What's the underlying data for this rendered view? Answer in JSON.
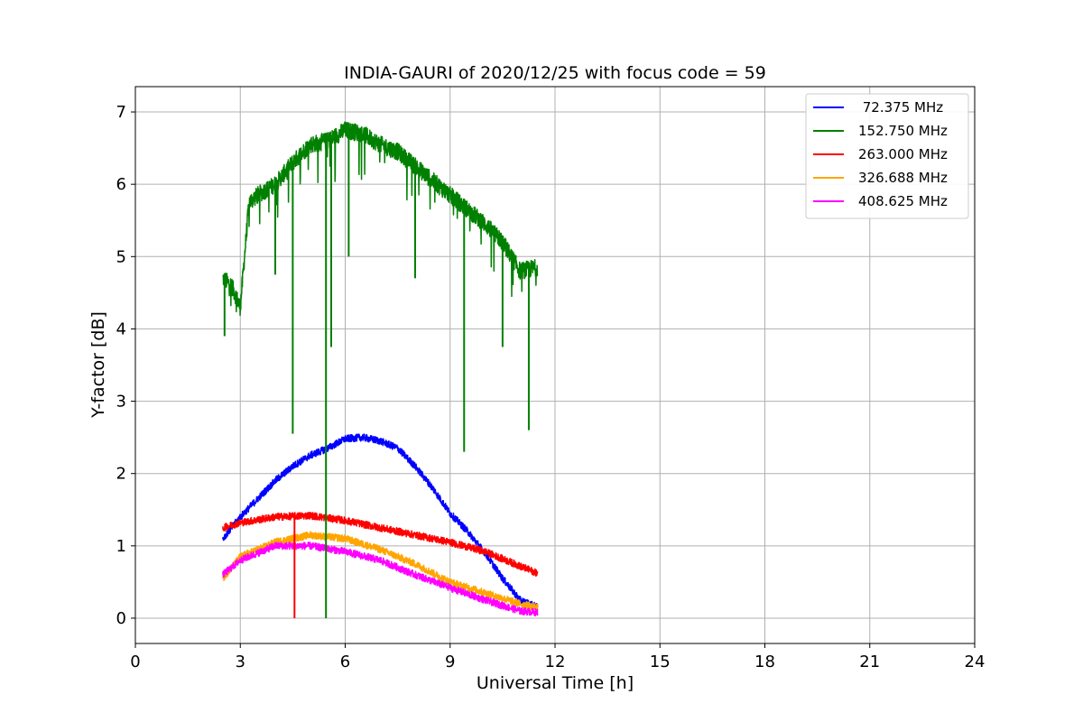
{
  "chart_data": {
    "type": "line",
    "title": "INDIA-GAURI of 2020/12/25 with focus code = 59",
    "xlabel": "Universal Time [h]",
    "ylabel": "Y-factor [dB]",
    "xlim": [
      0,
      24
    ],
    "ylim": [
      -0.35,
      7.35
    ],
    "xticks": [
      0,
      3,
      6,
      9,
      12,
      15,
      18,
      21,
      24
    ],
    "yticks": [
      0,
      1,
      2,
      3,
      4,
      5,
      6,
      7
    ],
    "grid": true,
    "legend_position": "top-right",
    "series": [
      {
        "name": " 72.375 MHz",
        "color": "#0000ff",
        "noise": 0.05,
        "x": [
          2.5,
          3.0,
          3.5,
          4.0,
          4.5,
          5.0,
          5.5,
          6.0,
          6.5,
          7.0,
          7.5,
          8.0,
          8.5,
          9.0,
          9.5,
          10.0,
          10.5,
          11.0,
          11.5
        ],
        "y": [
          1.1,
          1.4,
          1.65,
          1.9,
          2.1,
          2.25,
          2.35,
          2.48,
          2.5,
          2.45,
          2.35,
          2.1,
          1.8,
          1.45,
          1.2,
          0.9,
          0.55,
          0.25,
          0.15
        ]
      },
      {
        "name": "152.750 MHz",
        "color": "#008000",
        "noise": 0.12,
        "x": [
          2.5,
          2.75,
          3.0,
          3.25,
          3.5,
          4.0,
          4.5,
          5.0,
          5.5,
          6.0,
          6.5,
          7.0,
          7.5,
          8.0,
          8.5,
          9.0,
          9.5,
          10.0,
          10.5,
          11.0,
          11.5
        ],
        "y": [
          4.7,
          4.6,
          4.3,
          5.75,
          5.85,
          6.0,
          6.3,
          6.55,
          6.6,
          6.75,
          6.7,
          6.55,
          6.45,
          6.25,
          6.05,
          5.85,
          5.65,
          5.45,
          5.2,
          4.8,
          4.85
        ]
      },
      {
        "name": "263.000 MHz",
        "color": "#ff0000",
        "noise": 0.05,
        "x": [
          2.5,
          3.0,
          4.0,
          5.0,
          6.0,
          7.0,
          8.0,
          9.0,
          10.0,
          11.0,
          11.5
        ],
        "y": [
          1.25,
          1.32,
          1.4,
          1.42,
          1.35,
          1.25,
          1.15,
          1.05,
          0.92,
          0.72,
          0.62
        ]
      },
      {
        "name": "326.688 MHz",
        "color": "#ffa500",
        "noise": 0.05,
        "x": [
          2.5,
          3.0,
          3.5,
          4.0,
          5.0,
          6.0,
          7.0,
          8.0,
          9.0,
          10.0,
          11.0,
          11.5
        ],
        "y": [
          0.55,
          0.85,
          0.95,
          1.05,
          1.15,
          1.1,
          0.95,
          0.75,
          0.5,
          0.35,
          0.2,
          0.15
        ]
      },
      {
        "name": "408.625 MHz",
        "color": "#ff00ff",
        "noise": 0.05,
        "x": [
          2.5,
          3.0,
          3.5,
          4.0,
          5.0,
          6.0,
          7.0,
          8.0,
          9.0,
          10.0,
          11.0,
          11.5
        ],
        "y": [
          0.6,
          0.8,
          0.9,
          1.0,
          1.0,
          0.92,
          0.8,
          0.6,
          0.42,
          0.25,
          0.1,
          0.08
        ]
      }
    ],
    "spikes": [
      {
        "series": 1,
        "x": 4.5,
        "y": 2.55
      },
      {
        "series": 1,
        "x": 5.45,
        "y": 0.0
      },
      {
        "series": 1,
        "x": 5.6,
        "y": 3.75
      },
      {
        "series": 1,
        "x": 9.4,
        "y": 2.3
      },
      {
        "series": 1,
        "x": 11.25,
        "y": 2.6
      },
      {
        "series": 1,
        "x": 4.0,
        "y": 4.75
      },
      {
        "series": 1,
        "x": 8.0,
        "y": 4.7
      },
      {
        "series": 1,
        "x": 10.5,
        "y": 3.75
      },
      {
        "series": 1,
        "x": 2.55,
        "y": 3.9
      },
      {
        "series": 1,
        "x": 6.1,
        "y": 5.0
      },
      {
        "series": 2,
        "x": 4.55,
        "y": 0.0
      }
    ]
  }
}
